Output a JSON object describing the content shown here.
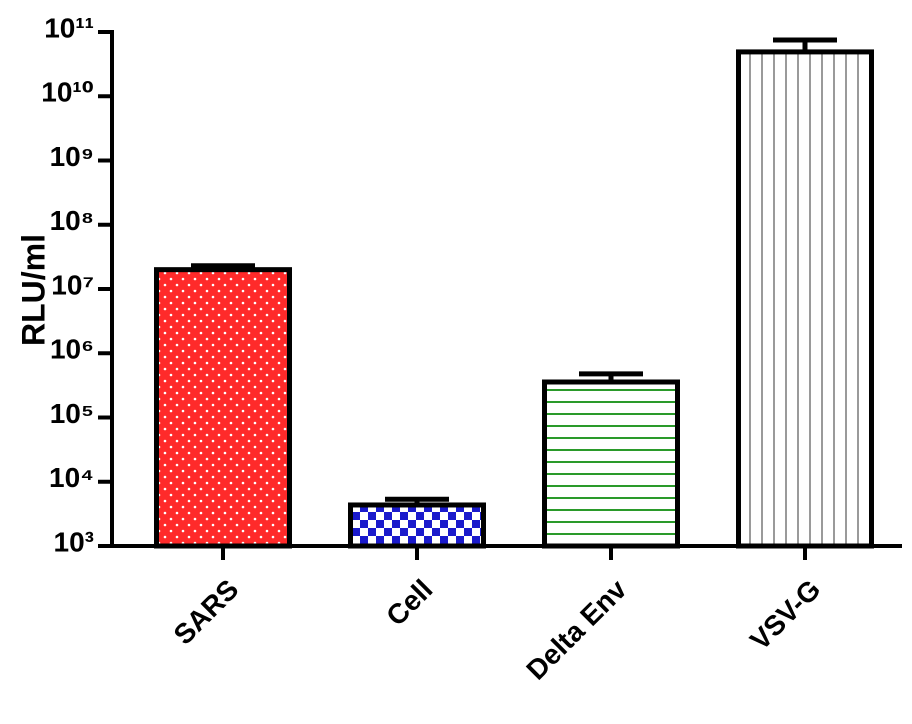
{
  "chart_data": {
    "type": "bar",
    "y_label": "RLU/ml",
    "categories": [
      "SARS",
      "Cell",
      "Delta Env",
      "VSV-G"
    ],
    "values": [
      20000000,
      4350,
      357000,
      49000000000
    ],
    "errors": [
      3000000,
      1000,
      120000,
      26000000000
    ],
    "colors": [
      "#ff2a2a",
      "#1a1acc",
      "#2a9a2a",
      "#9a9a9a"
    ],
    "patterns": [
      "dots",
      "checker",
      "hlines",
      "vlines"
    ],
    "log_scale": true,
    "ylim": [
      1000,
      100000000000
    ],
    "yticks": [
      {
        "value": 1000,
        "label": "10³"
      },
      {
        "value": 10000,
        "label": "10⁴"
      },
      {
        "value": 100000,
        "label": "10⁵"
      },
      {
        "value": 1000000,
        "label": "10⁶"
      },
      {
        "value": 10000000,
        "label": "10⁷"
      },
      {
        "value": 100000000,
        "label": "10⁸"
      },
      {
        "value": 1000000000,
        "label": "10⁹"
      },
      {
        "value": 10000000000,
        "label": "10¹⁰"
      },
      {
        "value": 100000000000,
        "label": "10¹¹"
      }
    ]
  }
}
